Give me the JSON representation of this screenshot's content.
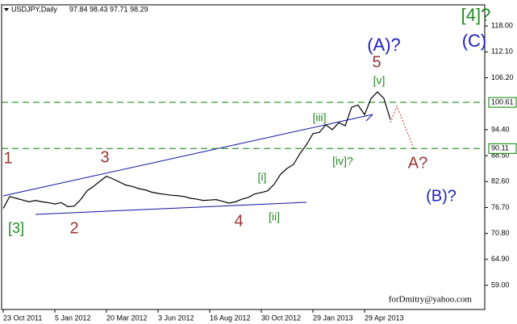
{
  "chart_data": {
    "type": "line",
    "symbol": "USDJPY,Daily",
    "ohlc": "97.84 98.43 97.71 98.29",
    "footer": "forDmitry@yahoo.com",
    "categories": [
      "23 Oct 2011",
      null,
      null,
      null,
      null,
      null,
      null,
      null,
      "5 Jan 2012",
      null,
      null,
      null,
      null,
      null,
      null,
      null,
      "20 Mar 2012",
      null,
      null,
      null,
      null,
      null,
      null,
      null,
      "3 Jun 2012",
      null,
      null,
      null,
      null,
      null,
      null,
      null,
      "16 Aug 2012",
      null,
      null,
      null,
      null,
      null,
      null,
      null,
      "30 Oct 2012",
      null,
      null,
      null,
      null,
      null,
      null,
      null,
      "29 Jan 2013",
      null,
      null,
      null,
      null,
      null,
      null,
      null,
      "29 Apr 2013",
      null,
      null,
      null,
      null
    ],
    "series": [
      {
        "color": "#000000",
        "values": [
          76.5,
          79.2,
          78.8,
          78.4,
          78.0,
          78.3,
          78.0,
          77.8,
          77.5,
          77.8,
          76.9,
          77.0,
          78.5,
          80.5,
          81.5,
          82.7,
          83.8,
          83.2,
          82.5,
          81.8,
          81.5,
          81.0,
          80.7,
          80.2,
          79.9,
          79.7,
          79.5,
          79.4,
          79.2,
          78.8,
          78.6,
          78.3,
          78.4,
          78.5,
          78.1,
          77.7,
          78.0,
          78.6,
          79.0,
          79.8,
          80.1,
          80.5,
          82.0,
          84.3,
          85.6,
          86.5,
          89.0,
          91.0,
          93.5,
          93.8,
          95.5,
          94.4,
          96.0,
          95.3,
          99.5,
          100.0,
          97.8,
          101.5,
          103.0,
          101.5,
          96.7
        ]
      }
    ],
    "ylim": [
      53.5,
      122.8
    ],
    "yticks": [
      {
        "value": 118,
        "label": "118.00"
      },
      {
        "value": 112.1,
        "label": "112.10"
      },
      {
        "value": 106.2,
        "label": "106.20"
      },
      {
        "value": 94.4,
        "label": "94.40"
      },
      {
        "value": 88.5,
        "label": "88.50"
      },
      {
        "value": 82.6,
        "label": "82.60"
      },
      {
        "value": 76.7,
        "label": "76.70"
      },
      {
        "value": 70.8,
        "label": "70.80"
      },
      {
        "value": 64.9,
        "label": "64.90"
      },
      {
        "value": 59,
        "label": "59.00"
      }
    ],
    "levels": [
      100.61,
      90.11
    ],
    "level_color": "#008000",
    "annotations": [
      {
        "text": "1",
        "color": "#993333"
      },
      {
        "text": "2",
        "color": "#993333"
      },
      {
        "text": "3",
        "color": "#993333"
      },
      {
        "text": "4",
        "color": "#993333"
      },
      {
        "text": "5",
        "color": "#993333"
      },
      {
        "text": "[3]",
        "color": "#228b22"
      },
      {
        "text": "[i]",
        "color": "#228b22"
      },
      {
        "text": "[ii]",
        "color": "#228b22"
      },
      {
        "text": "[iii]",
        "color": "#228b22"
      },
      {
        "text": "[iv]?",
        "color": "#228b22"
      },
      {
        "text": "[v]",
        "color": "#228b22"
      },
      {
        "text": "(A)?",
        "color": "#2020c0"
      },
      {
        "text": "A?",
        "color": "#993333"
      },
      {
        "text": "(B)?",
        "color": "#2020c0"
      },
      {
        "text": "[4]?",
        "color": "#228b22"
      },
      {
        "text": "(C)",
        "color": "#2020c0"
      }
    ]
  }
}
